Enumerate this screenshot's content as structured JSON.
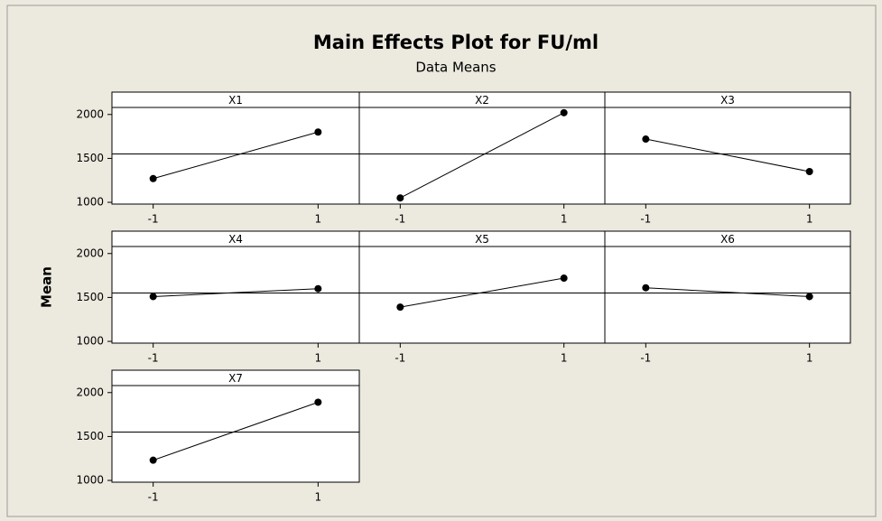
{
  "title": "Main Effects Plot for FU/ml",
  "subtitle": "Data Means",
  "ylabel": "Mean",
  "color": "#000000",
  "reference_line": 1550,
  "xlim": [
    -1.5,
    1.5
  ],
  "xticks": [
    -1,
    1
  ],
  "ylim": [
    980,
    2080
  ],
  "yticks": [
    1000,
    1500,
    2000
  ],
  "chart_data": [
    {
      "type": "line",
      "title": "X1",
      "x": [
        -1,
        1
      ],
      "values": [
        1270,
        1800
      ]
    },
    {
      "type": "line",
      "title": "X2",
      "x": [
        -1,
        1
      ],
      "values": [
        1050,
        2020
      ]
    },
    {
      "type": "line",
      "title": "X3",
      "x": [
        -1,
        1
      ],
      "values": [
        1720,
        1350
      ]
    },
    {
      "type": "line",
      "title": "X4",
      "x": [
        -1,
        1
      ],
      "values": [
        1510,
        1600
      ]
    },
    {
      "type": "line",
      "title": "X5",
      "x": [
        -1,
        1
      ],
      "values": [
        1390,
        1720
      ]
    },
    {
      "type": "line",
      "title": "X6",
      "x": [
        -1,
        1
      ],
      "values": [
        1610,
        1510
      ]
    },
    {
      "type": "line",
      "title": "X7",
      "x": [
        -1,
        1
      ],
      "values": [
        1230,
        1890
      ]
    }
  ]
}
